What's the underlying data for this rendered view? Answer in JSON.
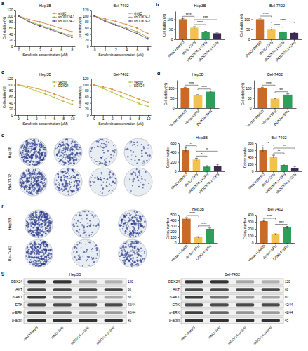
{
  "chart_data": [
    {
      "panel": "a",
      "type": "line",
      "title": "Hep3B",
      "x_label": "Sorafenib concentration (μM)",
      "y_label": "Cell viability (%)",
      "categories": [
        "0",
        "1",
        "2",
        "4",
        "6",
        "8"
      ],
      "series": [
        {
          "name": "shNC",
          "color": "#d9874f",
          "values": [
            100,
            88,
            80,
            70,
            58,
            48
          ]
        },
        {
          "name": "shDDX24-1",
          "color": "#9dbb3a",
          "values": [
            100,
            82,
            70,
            58,
            45,
            35
          ]
        },
        {
          "name": "shDDX24-2",
          "color": "#6a4c93",
          "values": [
            100,
            80,
            66,
            55,
            42,
            30
          ]
        }
      ],
      "ylim": [
        0,
        120
      ],
      "yticks": [
        0,
        20,
        40,
        60,
        80,
        100,
        120
      ],
      "legend": "top-right",
      "marker": "circle"
    },
    {
      "type": "line",
      "title": "Bel-7402",
      "x_label": "Sorafenib concentration (μM)",
      "y_label": "Cell viability (%)",
      "categories": [
        "0",
        "1",
        "2",
        "4",
        "6",
        "8"
      ],
      "series": [
        {
          "name": "shNC",
          "color": "#d9874f",
          "values": [
            100,
            90,
            82,
            72,
            60,
            42
          ]
        },
        {
          "name": "shDDX24-1",
          "color": "#9dbb3a",
          "values": [
            100,
            85,
            72,
            60,
            48,
            30
          ]
        },
        {
          "name": "shDDX24-2",
          "color": "#6a4c93",
          "values": [
            100,
            82,
            70,
            56,
            42,
            25
          ]
        }
      ],
      "ylim": [
        0,
        120
      ],
      "yticks": [
        0,
        20,
        40,
        60,
        80,
        100,
        120
      ],
      "legend": "top-right",
      "marker": "circle"
    },
    {
      "panel": "b",
      "type": "bar",
      "title": "Hep3B",
      "y_label": "Cell viability (%)",
      "categories": [
        "shNC+DMSO",
        "shNC+SFN",
        "shDDX24-1+SFN",
        "shDDX24-2+SFN"
      ],
      "values": [
        100,
        58,
        37,
        30
      ],
      "errors": [
        4,
        5,
        3,
        2
      ],
      "colors": [
        "#c96a28",
        "#f2c14e",
        "#2e9e5b",
        "#3d2b56"
      ],
      "ylim": [
        0,
        140
      ],
      "yticks": [
        0,
        50,
        100
      ],
      "annotations": [
        {
          "text": "****",
          "between": [
            "shNC+DMSO",
            "shNC+SFN"
          ]
        },
        {
          "text": "****",
          "between": [
            "shNC+SFN",
            "shDDX24-1+SFN"
          ]
        },
        {
          "text": "****",
          "between": [
            "shNC+SFN",
            "shDDX24-2+SFN"
          ]
        }
      ]
    },
    {
      "type": "bar",
      "title": "Bel-7402",
      "y_label": "Cell viability (%)",
      "categories": [
        "shNC+DMSO",
        "shNC+SFN",
        "shDDX24-1+SFN",
        "shDDX24-2+SFN"
      ],
      "values": [
        100,
        48,
        35,
        32
      ],
      "errors": [
        5,
        3,
        2,
        3
      ],
      "colors": [
        "#c96a28",
        "#f2c14e",
        "#2e9e5b",
        "#3d2b56"
      ],
      "ylim": [
        0,
        140
      ],
      "yticks": [
        0,
        50,
        100
      ],
      "annotations": [
        {
          "text": "****",
          "between": [
            "shNC+DMSO",
            "shNC+SFN"
          ]
        },
        {
          "text": "****",
          "between": [
            "shNC+SFN",
            "shDDX24-1+SFN"
          ]
        },
        {
          "text": "****",
          "between": [
            "shNC+SFN",
            "shDDX24-2+SFN"
          ]
        }
      ]
    },
    {
      "panel": "c",
      "type": "line",
      "title": "Hep3B",
      "x_label": "Sorafenib concentration (μM)",
      "y_label": "Cell viability (%)",
      "categories": [
        "0",
        "1",
        "2",
        "4",
        "6",
        "8",
        "10"
      ],
      "series": [
        {
          "name": "Vector",
          "color": "#b6c43a",
          "values": [
            100,
            90,
            80,
            70,
            58,
            45,
            35
          ]
        },
        {
          "name": "DDX24",
          "color": "#e39040",
          "values": [
            100,
            95,
            88,
            80,
            70,
            58,
            48
          ]
        }
      ],
      "ylim": [
        0,
        120
      ],
      "yticks": [
        0,
        20,
        40,
        60,
        80,
        100,
        120
      ],
      "legend": "top-right",
      "marker": "circle"
    },
    {
      "type": "line",
      "title": "Bel-7402",
      "x_label": "Sorafenib concentration (μM)",
      "y_label": "Cell viability (%)",
      "categories": [
        "0",
        "1",
        "2",
        "4",
        "6",
        "8",
        "10"
      ],
      "series": [
        {
          "name": "Vector",
          "color": "#b6c43a",
          "values": [
            100,
            88,
            75,
            62,
            50,
            38,
            28
          ]
        },
        {
          "name": "DDX24",
          "color": "#e39040",
          "values": [
            100,
            93,
            85,
            75,
            64,
            52,
            42
          ]
        }
      ],
      "ylim": [
        0,
        120
      ],
      "yticks": [
        0,
        20,
        40,
        60,
        80,
        100,
        120
      ],
      "legend": "top-right",
      "marker": "circle"
    },
    {
      "panel": "d",
      "type": "bar",
      "title": "Hep3B",
      "y_label": "Cell viability (%)",
      "categories": [
        "Vector+DMSO",
        "Vector+SFN",
        "DDX24+SFN"
      ],
      "values": [
        100,
        65,
        82
      ],
      "errors": [
        4,
        2,
        3
      ],
      "colors": [
        "#c96a28",
        "#f2c14e",
        "#2e9e5b"
      ],
      "ylim": [
        0,
        140
      ],
      "yticks": [
        0,
        50,
        100
      ],
      "annotations": [
        {
          "text": "****",
          "between": [
            "Vector+DMSO",
            "Vector+SFN"
          ]
        },
        {
          "text": "****",
          "between": [
            "Vector+SFN",
            "DDX24+SFN"
          ]
        }
      ]
    },
    {
      "type": "bar",
      "title": "Bel-7402",
      "y_label": "Cell viability (%)",
      "categories": [
        "Vector+DMSO",
        "Vector+SFN",
        "DDX24+SFN"
      ],
      "values": [
        100,
        47,
        67
      ],
      "errors": [
        4,
        2,
        4
      ],
      "colors": [
        "#c96a28",
        "#f2c14e",
        "#2e9e5b"
      ],
      "ylim": [
        0,
        140
      ],
      "yticks": [
        0,
        50,
        100
      ],
      "annotations": [
        {
          "text": "****",
          "between": [
            "Vector+DMSO",
            "Vector+SFN"
          ]
        },
        {
          "text": "***",
          "between": [
            "Vector+SFN",
            "DDX24+SFN"
          ]
        }
      ]
    },
    {
      "type": "bar",
      "title": "Hep3B",
      "y_label": "Colony number",
      "categories": [
        "shNC+DMSO",
        "shNC+SFN",
        "shDDX24-1+SFN",
        "shDDX24-2+SFN"
      ],
      "values": [
        450,
        250,
        100,
        110
      ],
      "errors": [
        50,
        30,
        20,
        40
      ],
      "colors": [
        "#c96a28",
        "#f2c14e",
        "#2e9e5b",
        "#3d2b56"
      ],
      "ylim": [
        0,
        600
      ],
      "yticks": [
        0,
        200,
        400,
        600
      ],
      "annotations": [
        {
          "text": "**",
          "between": [
            "shNC+DMSO",
            "shNC+SFN"
          ]
        },
        {
          "text": "*",
          "between": [
            "shNC+SFN",
            "shDDX24-1+SFN"
          ]
        },
        {
          "text": "*",
          "between": [
            "shNC+SFN",
            "shDDX24-2+SFN"
          ]
        }
      ]
    },
    {
      "type": "bar",
      "title": "Bel-7402",
      "y_label": "Colony number",
      "categories": [
        "shNC+DMSO",
        "shNC+SFN",
        "shDDX24-1+SFN",
        "shDDX24-2+SFN"
      ],
      "values": [
        620,
        420,
        180,
        100
      ],
      "errors": [
        70,
        40,
        30,
        40
      ],
      "colors": [
        "#c96a28",
        "#f2c14e",
        "#2e9e5b",
        "#3d2b56"
      ],
      "ylim": [
        0,
        800
      ],
      "yticks": [
        0,
        200,
        400,
        600,
        800
      ],
      "annotations": [
        {
          "text": "*",
          "between": [
            "shNC+DMSO",
            "shNC+SFN"
          ]
        },
        {
          "text": "**",
          "between": [
            "shNC+SFN",
            "shDDX24-1+SFN"
          ]
        },
        {
          "text": "**",
          "between": [
            "shNC+SFN",
            "shDDX24-2+SFN"
          ]
        }
      ]
    },
    {
      "type": "bar",
      "title": "Hep3B",
      "y_label": "Colony number",
      "categories": [
        "Vector+DMSO",
        "Vector+SFN",
        "DDX24+SFN"
      ],
      "values": [
        430,
        100,
        250
      ],
      "errors": [
        20,
        10,
        15
      ],
      "colors": [
        "#c96a28",
        "#f2c14e",
        "#2e9e5b"
      ],
      "ylim": [
        0,
        500
      ],
      "yticks": [
        0,
        100,
        200,
        300,
        400,
        500
      ],
      "annotations": [
        {
          "text": "****",
          "between": [
            "Vector+DMSO",
            "Vector+SFN"
          ]
        },
        {
          "text": "****",
          "between": [
            "Vector+SFN",
            "DDX24+SFN"
          ]
        }
      ]
    },
    {
      "type": "bar",
      "title": "Bel-7402",
      "y_label": "Colony number",
      "categories": [
        "Vector+DMSO",
        "Vector+SFN",
        "DDX24+SFN"
      ],
      "values": [
        310,
        120,
        220
      ],
      "errors": [
        10,
        10,
        15
      ],
      "colors": [
        "#c96a28",
        "#f2c14e",
        "#2e9e5b"
      ],
      "ylim": [
        0,
        400
      ],
      "yticks": [
        0,
        100,
        200,
        300,
        400
      ],
      "annotations": [
        {
          "text": "****",
          "between": [
            "Vector+DMSO",
            "Vector+SFN"
          ]
        },
        {
          "text": "****",
          "between": [
            "Vector+SFN",
            "DDX24+SFN"
          ]
        }
      ]
    }
  ],
  "plates": [
    {
      "panel": "e",
      "rows": [
        "Hep3B",
        "Bel-7402"
      ]
    },
    {
      "panel": "f",
      "rows": [
        "Hep3B",
        "Bel-7402"
      ]
    }
  ],
  "blot": {
    "panel": "g",
    "blocks": [
      {
        "title": "Hep3B",
        "proteins": [
          "DDX24",
          "AKT",
          "p-AKT",
          "ERK",
          "p-ERK",
          "β-actin"
        ],
        "weights": [
          "120",
          "60",
          "60",
          "42/44",
          "42/44",
          "45"
        ],
        "lanes": [
          "shNC+DMSO",
          "shNC+SFN",
          "shDDX24-1+SFN",
          "shDDX24-2+SFN"
        ]
      },
      {
        "title": "Bel-7402",
        "proteins": [
          "DDX24",
          "AKT",
          "p-AKT",
          "ERK",
          "p-ERK",
          "β-actin"
        ],
        "weights": [
          "120",
          "60",
          "60",
          "42/44",
          "42/44",
          "45"
        ],
        "lanes": [
          "shNC+DMSO",
          "shNC+SFN",
          "shDDX24-1+SFN",
          "shDDX24-2+SFN"
        ]
      }
    ]
  }
}
